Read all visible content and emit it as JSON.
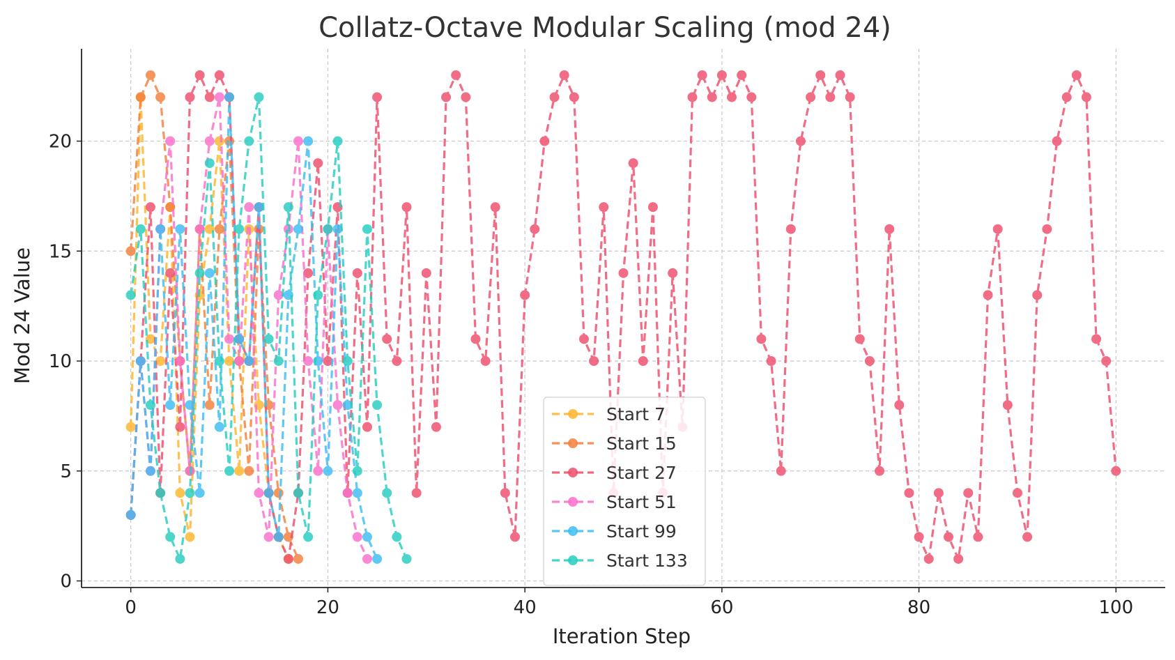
{
  "chart_data": {
    "type": "line",
    "title": "Collatz-Octave Modular Scaling (mod 24)",
    "xlabel": "Iteration Step",
    "ylabel": "Mod 24 Value",
    "xlim": [
      -5,
      105
    ],
    "ylim": [
      -0.3,
      24.2
    ],
    "xticks": [
      0,
      20,
      40,
      60,
      80,
      100
    ],
    "yticks": [
      0,
      5,
      10,
      15,
      20
    ],
    "grid": true,
    "legend_position": "lower-center",
    "series": [
      {
        "name": "Start 7",
        "color": "#FDB52B",
        "values": [
          7,
          22,
          11,
          10,
          17,
          4,
          2,
          13,
          16,
          20,
          10,
          5,
          16,
          8,
          4,
          2,
          1
        ]
      },
      {
        "name": "Start 15",
        "color": "#F4803C",
        "values": [
          15,
          22,
          23,
          22,
          17,
          10,
          5,
          16,
          8,
          16,
          20,
          10,
          5,
          16,
          8,
          4,
          2,
          1
        ]
      },
      {
        "name": "Start 27",
        "color": "#EE4D6B",
        "values": [
          3,
          10,
          17,
          4,
          14,
          7,
          22,
          23,
          22,
          23,
          22,
          11,
          10,
          17,
          4,
          2,
          1,
          4,
          14,
          19,
          10,
          17,
          4,
          14,
          7,
          22,
          11,
          10,
          17,
          4,
          14,
          7,
          22,
          23,
          22,
          11,
          10,
          17,
          4,
          2,
          13,
          16,
          20,
          22,
          23,
          22,
          11,
          10,
          17,
          4,
          14,
          19,
          10,
          17,
          4,
          14,
          7,
          22,
          23,
          22,
          23,
          22,
          23,
          22,
          11,
          10,
          5,
          16,
          20,
          22,
          23,
          22,
          23,
          22,
          11,
          10,
          5,
          16,
          8,
          4,
          2,
          1,
          4,
          2,
          1,
          4,
          2,
          13,
          16,
          8,
          4,
          2,
          13,
          16,
          20,
          22,
          23,
          22,
          11,
          10,
          5
        ]
      },
      {
        "name": "Start 51",
        "color": "#FA6FCB",
        "values": [
          3,
          10,
          5,
          16,
          20,
          10,
          5,
          16,
          20,
          22,
          11,
          10,
          17,
          4,
          2,
          13,
          16,
          20,
          10,
          5,
          16,
          8,
          4,
          2,
          1
        ]
      },
      {
        "name": "Start 99",
        "color": "#3DBDF2",
        "values": [
          3,
          10,
          5,
          16,
          8,
          16,
          8,
          4,
          14,
          7,
          22,
          11,
          10,
          17,
          4,
          2,
          13,
          16,
          20,
          10,
          5,
          16,
          8,
          4,
          2,
          1
        ]
      },
      {
        "name": "Start 133",
        "color": "#25CEC0",
        "values": [
          13,
          16,
          8,
          4,
          2,
          1,
          4,
          14,
          19,
          10,
          5,
          16,
          20,
          22,
          11,
          10,
          17,
          4,
          2,
          13,
          16,
          20,
          10,
          5,
          16,
          8,
          4,
          2,
          1
        ]
      }
    ]
  }
}
